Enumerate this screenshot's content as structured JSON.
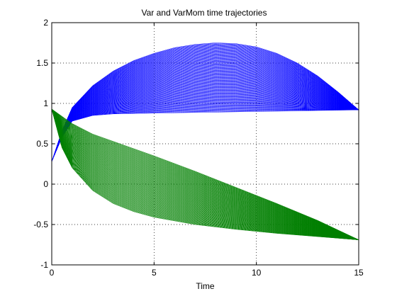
{
  "chart_data": {
    "type": "line",
    "title": "Var and VarMom time trajectories",
    "xlabel": "Time",
    "ylabel": "",
    "xlim": [
      0,
      15
    ],
    "ylim": [
      -1,
      2
    ],
    "xticks": [
      0,
      5,
      10,
      15
    ],
    "xtick_labels": [
      "0",
      "5",
      "10",
      "15"
    ],
    "yticks": [
      -1,
      -0.5,
      0,
      0.5,
      1,
      1.5,
      2
    ],
    "ytick_labels": [
      "-1",
      "-0.5",
      "0",
      "0.5",
      "1",
      "1.5",
      "2"
    ],
    "grid": true,
    "legend": "none",
    "series_groups": [
      {
        "color": "#0000ff",
        "count": 120,
        "envelope_upper": [
          [
            0,
            0.28
          ],
          [
            0.5,
            0.66
          ],
          [
            1,
            0.95
          ],
          [
            2,
            1.22
          ],
          [
            3,
            1.4
          ],
          [
            4,
            1.53
          ],
          [
            5,
            1.62
          ],
          [
            6,
            1.69
          ],
          [
            7,
            1.73
          ],
          [
            8,
            1.75
          ],
          [
            9,
            1.74
          ],
          [
            10,
            1.7
          ],
          [
            11,
            1.62
          ],
          [
            12,
            1.5
          ],
          [
            13,
            1.34
          ],
          [
            14,
            1.14
          ],
          [
            15,
            0.92
          ]
        ],
        "envelope_lower": [
          [
            0,
            0.28
          ],
          [
            0.5,
            0.58
          ],
          [
            1,
            0.78
          ],
          [
            2,
            0.85
          ],
          [
            3,
            0.87
          ],
          [
            5,
            0.88
          ],
          [
            10,
            0.9
          ],
          [
            15,
            0.92
          ]
        ]
      },
      {
        "color": "#007f00",
        "count": 120,
        "envelope_upper": [
          [
            0,
            0.93
          ],
          [
            1,
            0.75
          ],
          [
            2,
            0.62
          ],
          [
            3,
            0.53
          ],
          [
            4,
            0.44
          ],
          [
            5,
            0.35
          ],
          [
            7,
            0.16
          ],
          [
            9,
            -0.04
          ],
          [
            11,
            -0.24
          ],
          [
            13,
            -0.45
          ],
          [
            15,
            -0.69
          ]
        ],
        "envelope_lower": [
          [
            0,
            0.93
          ],
          [
            0.5,
            0.45
          ],
          [
            1,
            0.2
          ],
          [
            2,
            -0.08
          ],
          [
            3,
            -0.24
          ],
          [
            4,
            -0.34
          ],
          [
            5,
            -0.41
          ],
          [
            7,
            -0.5
          ],
          [
            9,
            -0.56
          ],
          [
            11,
            -0.61
          ],
          [
            13,
            -0.65
          ],
          [
            15,
            -0.69
          ]
        ]
      }
    ]
  }
}
